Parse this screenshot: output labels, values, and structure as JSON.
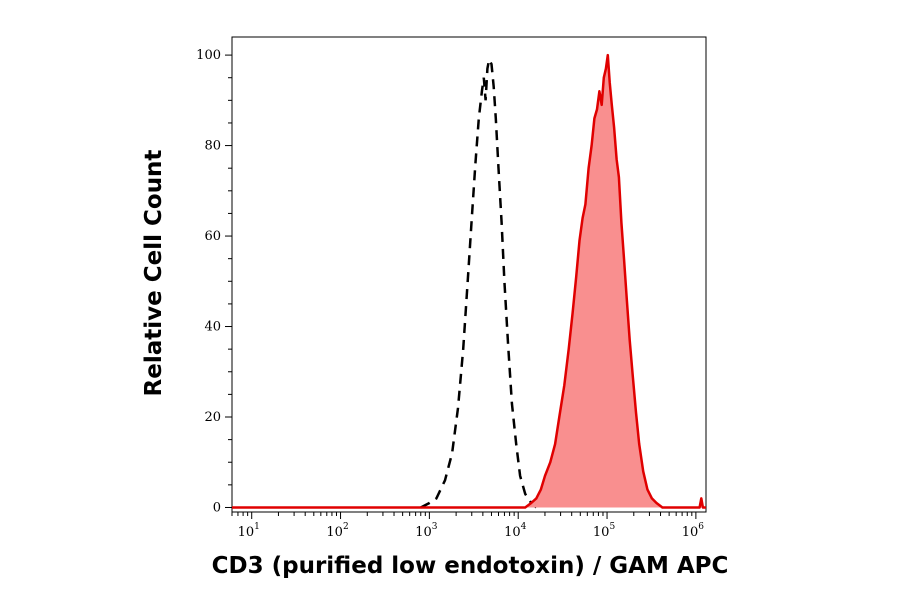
{
  "chart_data": {
    "type": "histogram",
    "xlabel": "CD3 (purified low endotoxin) / GAM APC",
    "ylabel": "Relative Cell Count",
    "x_scale": "log",
    "xlim": [
      6,
      1300000
    ],
    "ylim": [
      -1,
      104
    ],
    "x_ticks": [
      {
        "value": 10,
        "base": "10",
        "exp": "1"
      },
      {
        "value": 100,
        "base": "10",
        "exp": "2"
      },
      {
        "value": 1000,
        "base": "10",
        "exp": "3"
      },
      {
        "value": 10000,
        "base": "10",
        "exp": "4"
      },
      {
        "value": 100000,
        "base": "10",
        "exp": "5"
      },
      {
        "value": 1000000,
        "base": "10",
        "exp": "6"
      }
    ],
    "y_ticks": [
      {
        "value": 0,
        "label": "0"
      },
      {
        "value": 20,
        "label": "20"
      },
      {
        "value": 40,
        "label": "40"
      },
      {
        "value": 60,
        "label": "60"
      },
      {
        "value": 80,
        "label": "80"
      },
      {
        "value": 100,
        "label": "100"
      }
    ],
    "grid": false,
    "legend": "none",
    "series": [
      {
        "style": "dashed-outline",
        "color": "#000000",
        "points": [
          [
            800,
            0
          ],
          [
            1000,
            1
          ],
          [
            1200,
            2
          ],
          [
            1500,
            6
          ],
          [
            1800,
            12
          ],
          [
            2100,
            22
          ],
          [
            2400,
            35
          ],
          [
            2700,
            50
          ],
          [
            3000,
            64
          ],
          [
            3300,
            76
          ],
          [
            3600,
            86
          ],
          [
            3900,
            92
          ],
          [
            4100,
            95
          ],
          [
            4300,
            90
          ],
          [
            4500,
            97
          ],
          [
            4700,
            99
          ],
          [
            5000,
            98
          ],
          [
            5300,
            93
          ],
          [
            5600,
            86
          ],
          [
            6000,
            75
          ],
          [
            6500,
            63
          ],
          [
            7000,
            50
          ],
          [
            7700,
            36
          ],
          [
            8500,
            23
          ],
          [
            9500,
            14
          ],
          [
            10500,
            7
          ],
          [
            12000,
            3
          ],
          [
            14000,
            1
          ],
          [
            16000,
            0
          ]
        ]
      },
      {
        "style": "filled",
        "color": "#e00000",
        "fill": "#f98f8f",
        "points": [
          [
            6,
            0
          ],
          [
            12000,
            0
          ],
          [
            14000,
            1
          ],
          [
            16000,
            2
          ],
          [
            18000,
            4
          ],
          [
            20000,
            7
          ],
          [
            23000,
            10
          ],
          [
            26000,
            14
          ],
          [
            29000,
            20
          ],
          [
            33000,
            27
          ],
          [
            37000,
            35
          ],
          [
            41000,
            43
          ],
          [
            45000,
            51
          ],
          [
            49000,
            59
          ],
          [
            53000,
            64
          ],
          [
            57000,
            67
          ],
          [
            62000,
            75
          ],
          [
            67000,
            80
          ],
          [
            72000,
            86
          ],
          [
            77000,
            88
          ],
          [
            82000,
            92
          ],
          [
            87000,
            89
          ],
          [
            92000,
            95
          ],
          [
            97000,
            97
          ],
          [
            102000,
            100
          ],
          [
            107000,
            94
          ],
          [
            113000,
            89
          ],
          [
            120000,
            84
          ],
          [
            128000,
            77
          ],
          [
            136000,
            73
          ],
          [
            145000,
            63
          ],
          [
            155000,
            55
          ],
          [
            167000,
            46
          ],
          [
            180000,
            37
          ],
          [
            195000,
            29
          ],
          [
            212000,
            21
          ],
          [
            230000,
            14
          ],
          [
            255000,
            8
          ],
          [
            285000,
            4
          ],
          [
            320000,
            2
          ],
          [
            360000,
            1
          ],
          [
            420000,
            0
          ],
          [
            1100000,
            0
          ],
          [
            1150000,
            2
          ],
          [
            1200000,
            0
          ],
          [
            1300000,
            0
          ]
        ]
      }
    ]
  }
}
